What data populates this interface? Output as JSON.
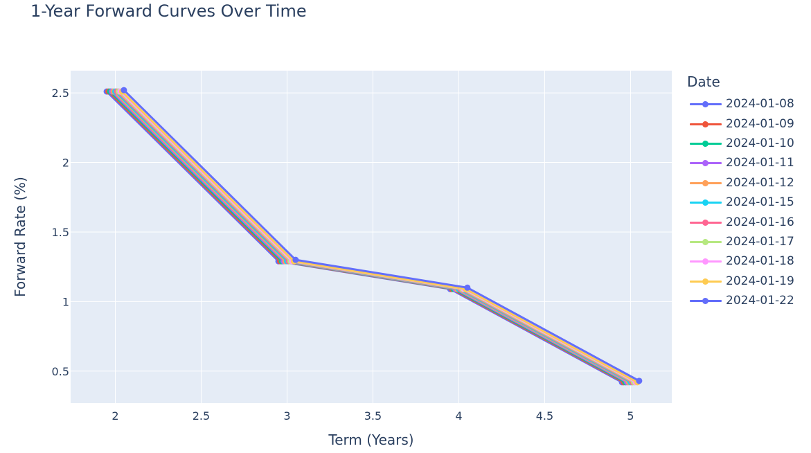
{
  "chart_data": {
    "type": "line",
    "title": "1-Year Forward Curves Over Time",
    "xlabel": "Term (Years)",
    "ylabel": "Forward Rate (%)",
    "legend_title": "Date",
    "legend_placement": "right",
    "grid": true,
    "xlim": [
      1.74,
      5.24
    ],
    "ylim": [
      0.27,
      2.66
    ],
    "x_ticks": [
      2,
      2.5,
      3,
      3.5,
      4,
      4.5,
      5
    ],
    "x_tick_labels": [
      "2",
      "2.5",
      "3",
      "3.5",
      "4",
      "4.5",
      "5"
    ],
    "y_ticks": [
      0.5,
      1,
      1.5,
      2,
      2.5
    ],
    "y_tick_labels": [
      "0.5",
      "1",
      "1.5",
      "2",
      "2.5"
    ],
    "colors": {
      "plot_bg": "#e5ecf6",
      "grid": "#ffffff",
      "text": "#2a3f5f"
    },
    "series": [
      {
        "name": "2024-01-08",
        "color": "#636efa",
        "x": [
          1.95,
          2.95,
          3.95,
          4.95
        ],
        "values": [
          2.51,
          1.29,
          1.09,
          0.42
        ]
      },
      {
        "name": "2024-01-09",
        "color": "#EF553B",
        "x": [
          1.96,
          2.96,
          3.96,
          4.96
        ],
        "values": [
          2.51,
          1.29,
          1.09,
          0.42
        ]
      },
      {
        "name": "2024-01-10",
        "color": "#00cc96",
        "x": [
          1.97,
          2.97,
          3.97,
          4.97
        ],
        "values": [
          2.51,
          1.29,
          1.09,
          0.42
        ]
      },
      {
        "name": "2024-01-11",
        "color": "#ab63fa",
        "x": [
          1.98,
          2.98,
          3.98,
          4.98
        ],
        "values": [
          2.51,
          1.29,
          1.09,
          0.42
        ]
      },
      {
        "name": "2024-01-12",
        "color": "#FFA15A",
        "x": [
          1.99,
          2.99,
          3.99,
          4.99
        ],
        "values": [
          2.51,
          1.29,
          1.09,
          0.42
        ]
      },
      {
        "name": "2024-01-15",
        "color": "#19d3f3",
        "x": [
          2.0,
          3.0,
          4.0,
          5.0
        ],
        "values": [
          2.51,
          1.29,
          1.09,
          0.42
        ]
      },
      {
        "name": "2024-01-16",
        "color": "#FF6692",
        "x": [
          2.01,
          3.01,
          4.01,
          5.01
        ],
        "values": [
          2.51,
          1.29,
          1.09,
          0.42
        ]
      },
      {
        "name": "2024-01-17",
        "color": "#B6E880",
        "x": [
          2.02,
          3.02,
          4.02,
          5.02
        ],
        "values": [
          2.51,
          1.29,
          1.09,
          0.42
        ]
      },
      {
        "name": "2024-01-18",
        "color": "#FF97FF",
        "x": [
          2.03,
          3.03,
          4.03,
          5.03
        ],
        "values": [
          2.51,
          1.29,
          1.09,
          0.42
        ]
      },
      {
        "name": "2024-01-19",
        "color": "#FECB52",
        "x": [
          2.04,
          3.04,
          4.04,
          5.04
        ],
        "values": [
          2.51,
          1.29,
          1.09,
          0.42
        ]
      },
      {
        "name": "2024-01-22",
        "color": "#636efa",
        "x": [
          2.05,
          3.05,
          4.05,
          5.05
        ],
        "values": [
          2.52,
          1.3,
          1.1,
          0.43
        ]
      }
    ]
  }
}
